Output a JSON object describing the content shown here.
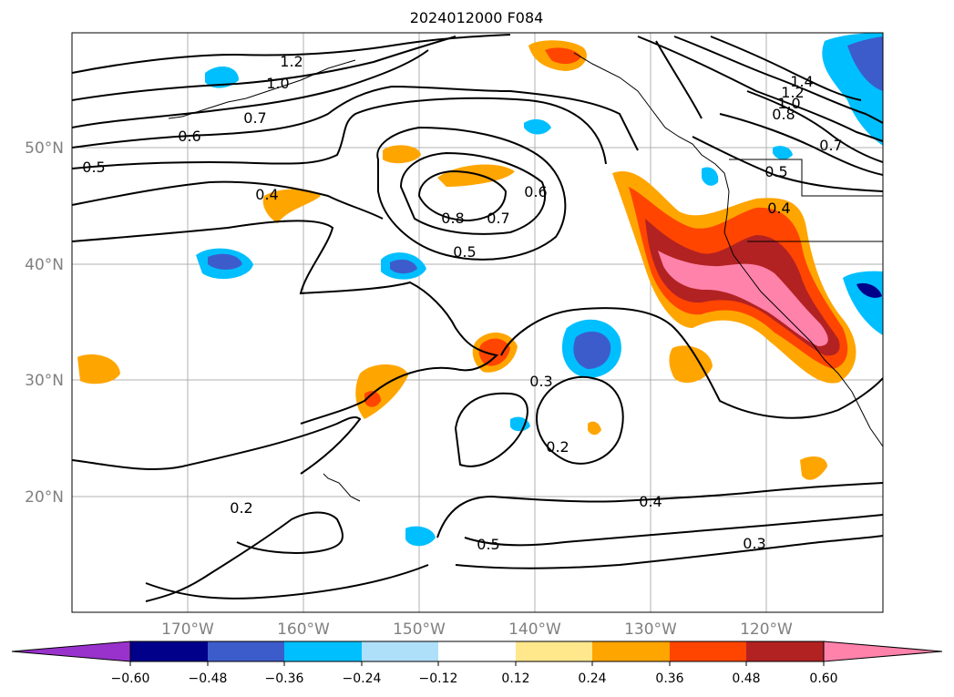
{
  "title": "2024012000 F084",
  "map": {
    "lat_labels": [
      "50°N",
      "40°N",
      "30°N",
      "20°N"
    ],
    "lon_labels": [
      "170°W",
      "160°W",
      "150°W",
      "140°W",
      "130°W",
      "120°W"
    ],
    "contour_labels": [
      "1.2",
      "1.0",
      "0.7",
      "0.6",
      "0.5",
      "0.4",
      "0.8",
      "0.7",
      "0.6",
      "0.5",
      "0.3",
      "0.2",
      "0.2",
      "0.4",
      "0.5",
      "0.3",
      "1.4",
      "1.2",
      "1.0",
      "0.8",
      "0.7",
      "0.5",
      "0.4"
    ]
  },
  "colorbar": {
    "ticks": [
      "−0.60",
      "−0.48",
      "−0.36",
      "−0.24",
      "−0.12",
      "0.12",
      "0.24",
      "0.36",
      "0.48",
      "0.60"
    ],
    "colors": [
      "#9932cc",
      "#00008b",
      "#3d5ccc",
      "#00bfff",
      "#afe0fa",
      "#ffffff",
      "#ffe78c",
      "#ffa500",
      "#ff4500",
      "#b22222",
      "#ff82ab",
      "#ff82ab"
    ]
  }
}
